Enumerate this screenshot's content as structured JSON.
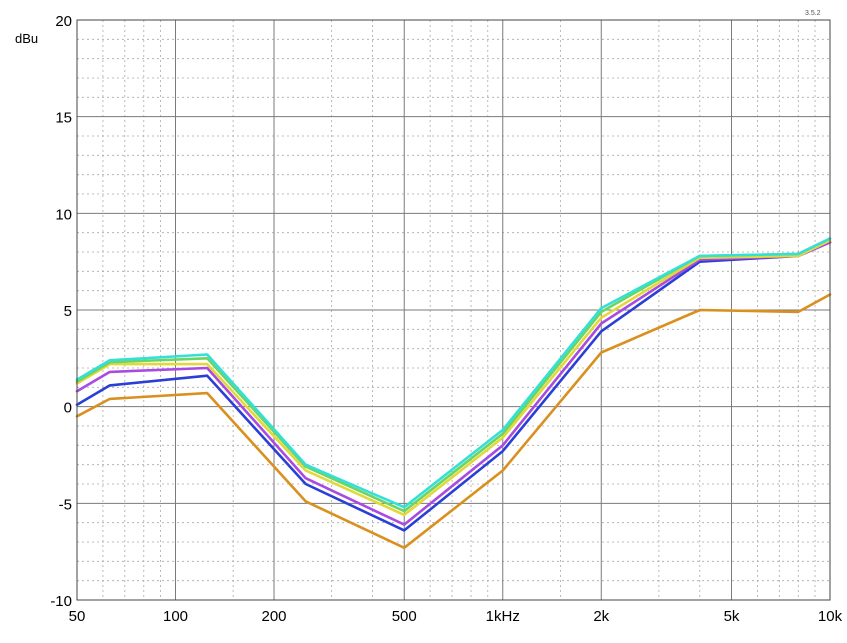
{
  "version": "3.5.2",
  "chart_data": {
    "type": "line",
    "ylabel": "dBu",
    "xlabel": "",
    "x_scale": "log",
    "xlim": [
      50,
      10000
    ],
    "ylim": [
      -10,
      20
    ],
    "grid": true,
    "x_ticks": [
      {
        "value": 50,
        "label": "50"
      },
      {
        "value": 100,
        "label": "100"
      },
      {
        "value": 200,
        "label": "200"
      },
      {
        "value": 500,
        "label": "500"
      },
      {
        "value": 1000,
        "label": "1kHz"
      },
      {
        "value": 2000,
        "label": "2k"
      },
      {
        "value": 5000,
        "label": "5k"
      },
      {
        "value": 10000,
        "label": "10k"
      }
    ],
    "y_ticks": [
      {
        "value": 20,
        "label": "20"
      },
      {
        "value": 15,
        "label": "15"
      },
      {
        "value": 10,
        "label": "10"
      },
      {
        "value": 5,
        "label": "5"
      },
      {
        "value": 0,
        "label": "0"
      },
      {
        "value": -5,
        "label": "-5"
      },
      {
        "value": -10,
        "label": "-10"
      }
    ],
    "x": [
      50,
      63,
      125,
      250,
      500,
      1000,
      2000,
      4000,
      8000,
      10000
    ],
    "series": [
      {
        "color": "#d9901e",
        "values": [
          -0.5,
          0.4,
          0.7,
          -4.9,
          -7.3,
          -3.3,
          2.8,
          5.0,
          4.9,
          5.8
        ]
      },
      {
        "color": "#2b3fd6",
        "values": [
          0.1,
          1.1,
          1.6,
          -4.0,
          -6.4,
          -2.3,
          3.9,
          7.5,
          7.8,
          8.5
        ]
      },
      {
        "color": "#a94be0",
        "values": [
          0.8,
          1.8,
          2.0,
          -3.7,
          -6.1,
          -2.0,
          4.3,
          7.6,
          7.8,
          8.5
        ]
      },
      {
        "color": "#e3d83a",
        "values": [
          1.2,
          2.2,
          2.2,
          -3.3,
          -5.6,
          -1.6,
          4.6,
          7.7,
          7.8,
          8.6
        ]
      },
      {
        "color": "#6cd464",
        "values": [
          1.3,
          2.3,
          2.5,
          -3.1,
          -5.4,
          -1.4,
          4.9,
          7.8,
          7.9,
          8.7
        ]
      },
      {
        "color": "#33e0d8",
        "values": [
          1.4,
          2.4,
          2.7,
          -3.0,
          -5.2,
          -1.2,
          5.1,
          7.8,
          7.9,
          8.7
        ]
      }
    ]
  }
}
